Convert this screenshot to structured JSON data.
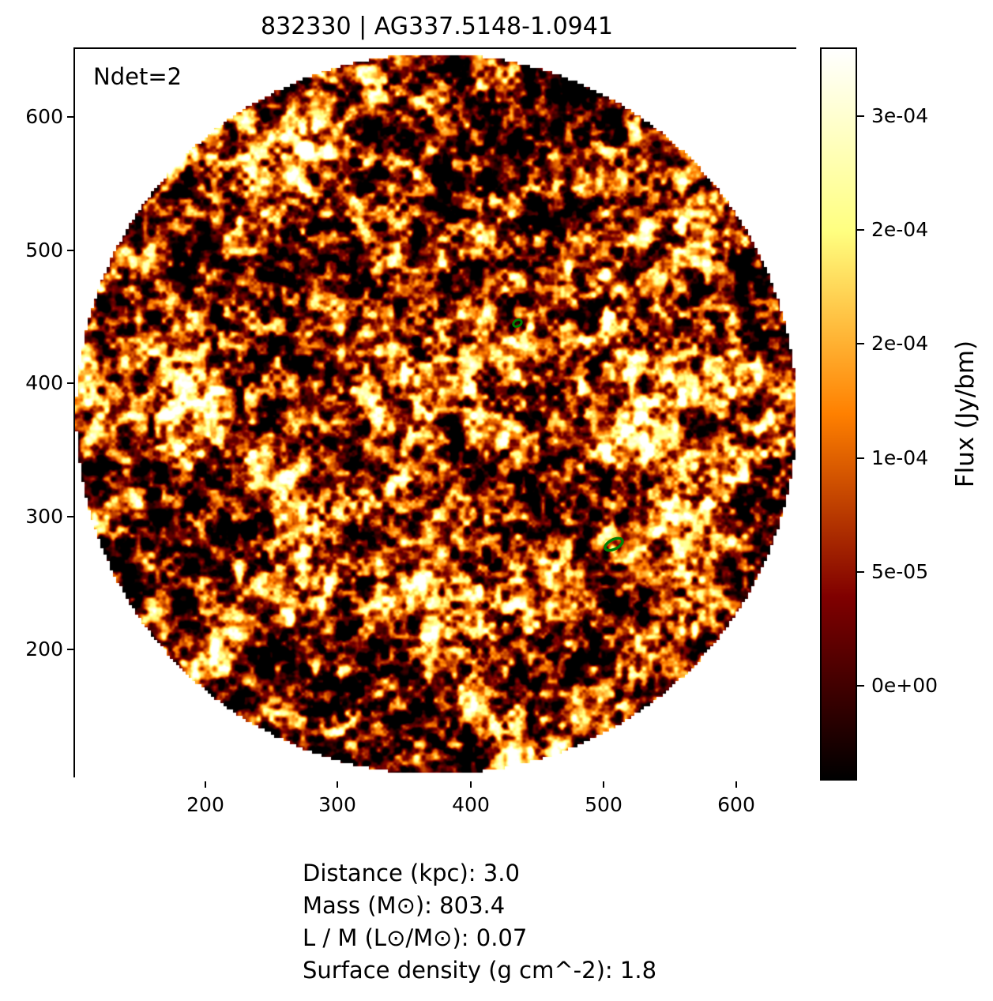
{
  "figure": {
    "title": "832330 | AG337.5148-1.0941",
    "annotation_ndet": "Ndet=2",
    "stats_lines": [
      "Distance (kpc): 3.0",
      "Mass (M⊙): 803.4",
      "L / M (L⊙/M⊙): 0.07",
      "Surface density (g cm^-2): 1.8"
    ]
  },
  "chart_data": {
    "type": "heatmap",
    "title": "832330 | AG337.5148-1.0941",
    "annotation": "Ndet=2",
    "n_detections": 2,
    "x_ticks": [
      200,
      300,
      400,
      500,
      600
    ],
    "y_ticks_top_to_bottom": [
      600,
      500,
      400,
      300,
      200
    ],
    "xlim": [
      101,
      648
    ],
    "ylim": [
      101,
      652
    ],
    "image": {
      "description": "circular aperture filled with mottled beam-smoothed flux noise; white outside aperture",
      "colormap": "afmhot (black to dark red to orange to yellow to white)",
      "aperture_center_data": [
        374,
        376
      ],
      "aperture_radius_data": 272
    },
    "colorbar": {
      "label": "Flux (Jy/bm)",
      "tick_labels_top_to_bottom": [
        "3e-04",
        "2e-04",
        "2e-04",
        "1e-04",
        "5e-05",
        "0e+00"
      ],
      "position": "right"
    },
    "detections": [
      {
        "x": 433,
        "y": 446,
        "marker": "small green ellipse outline"
      },
      {
        "x": 506,
        "y": 280,
        "marker": "tilted green ellipse outline"
      }
    ],
    "stats": {
      "distance_kpc": 3.0,
      "mass_msun": 803.4,
      "l_over_m_lsun_per_msun": 0.07,
      "surface_density_g_cm2": 1.8
    },
    "grid": false
  },
  "colors": {
    "background": "#ffffff",
    "axes_border": "#000000",
    "text": "#000000",
    "marker_green": "#008000",
    "colormap_stops_top_to_bottom": [
      "#ffffff",
      "#ffffbf",
      "#ffff80",
      "#ffbf40",
      "#ff8000",
      "#bf4000",
      "#800000",
      "#400000",
      "#000000"
    ]
  }
}
